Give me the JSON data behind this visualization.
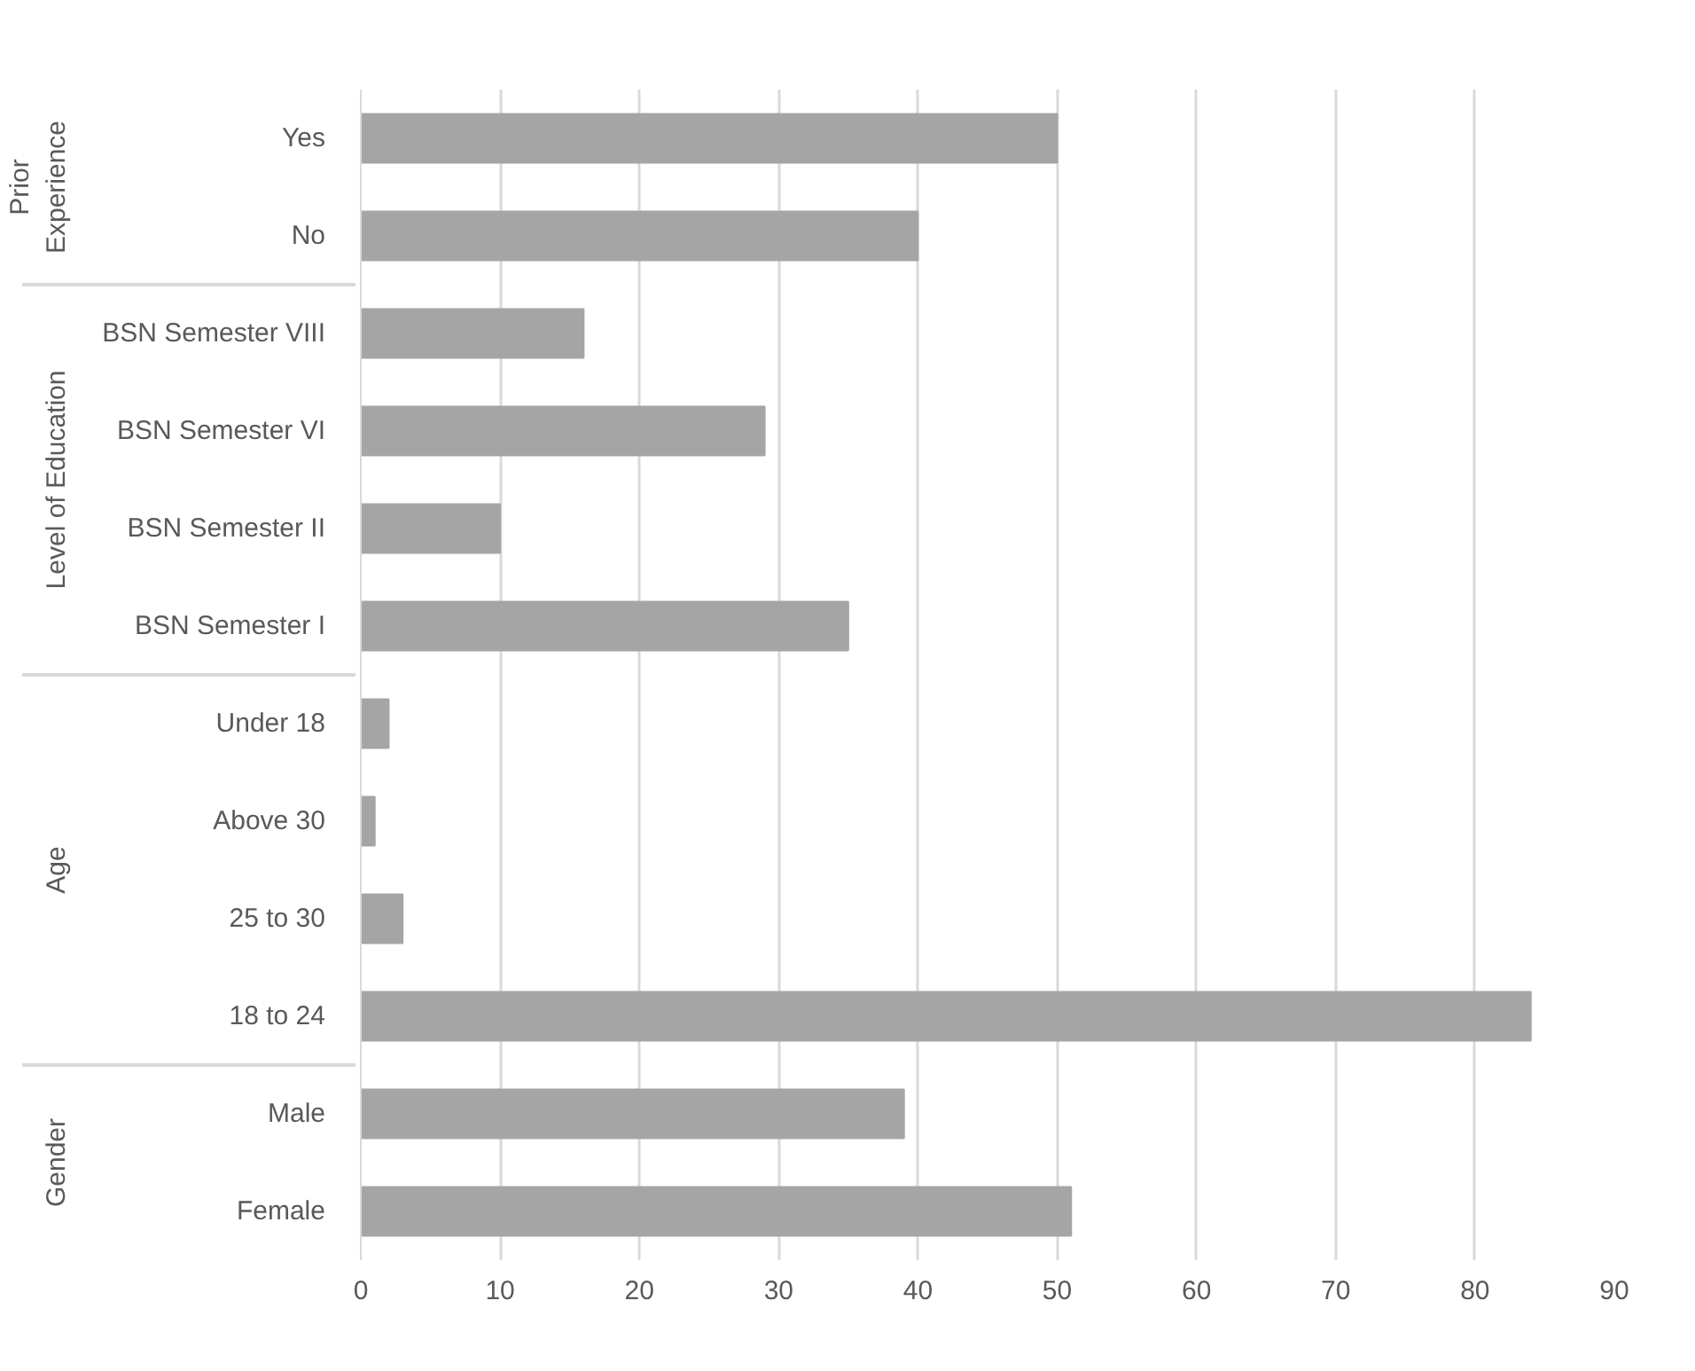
{
  "chart_data": {
    "type": "bar",
    "orientation": "horizontal",
    "categories": [
      "Yes",
      "No",
      "BSN Semester VIII",
      "BSN Semester VI",
      "BSN Semester II",
      "BSN Semester I",
      "Under 18",
      "Above 30",
      "25 to 30",
      "18 to 24",
      "Male",
      "Female"
    ],
    "values": [
      50,
      40,
      16,
      29,
      10,
      35,
      2,
      1,
      3,
      84,
      39,
      51
    ],
    "color": "#a5a5a5",
    "xlim": [
      0,
      90
    ],
    "xticks": [
      0,
      10,
      20,
      30,
      40,
      50,
      60,
      70,
      80,
      90
    ],
    "grid": "x",
    "annotations": [
      "Prior Experience",
      "Level of Education",
      "Age",
      "Gender"
    ]
  }
}
